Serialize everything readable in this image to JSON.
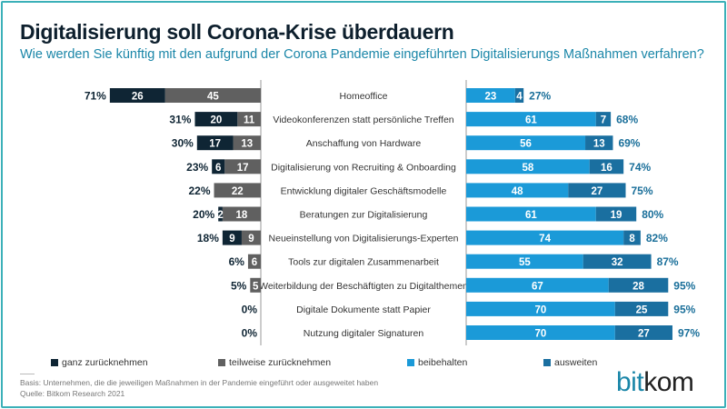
{
  "title": "Digitalisierung soll Corona-Krise überdauern",
  "subtitle": "Wie werden Sie künftig mit den aufgrund der Corona Pandemie eingeführten Digitalisierungs Maßnahmen verfahren?",
  "chart_data": {
    "type": "bar",
    "orientation": "horizontal-diverging",
    "categories": [
      "Homeoffice",
      "Videokonferenzen statt persönliche Treffen",
      "Anschaffung von Hardware",
      "Digitalisierung von Recruiting & Onboarding",
      "Entwicklung digitaler Geschäftsmodelle",
      "Beratungen zur Digitalisierung",
      "Neueinstellung von Digitalisierungs-Experten",
      "Tools zur digitalen Zusammenarbeit",
      "Weiterbildung der Beschäftigten zu Digitalthemen",
      "Digitale Dokumente statt Papier",
      "Nutzung digitaler Signaturen"
    ],
    "series": [
      {
        "name": "ganz zurücknehmen",
        "side": "left",
        "color": "#0f2534",
        "values": [
          26,
          20,
          17,
          6,
          0,
          2,
          9,
          0,
          0,
          0,
          0
        ]
      },
      {
        "name": "teilweise zurücknehmen",
        "side": "left",
        "color": "#606060",
        "values": [
          45,
          11,
          13,
          17,
          22,
          18,
          9,
          6,
          5,
          0,
          0
        ]
      },
      {
        "name": "beibehalten",
        "side": "right",
        "color": "#1b9ad8",
        "values": [
          23,
          61,
          56,
          58,
          48,
          61,
          74,
          55,
          67,
          70,
          70
        ]
      },
      {
        "name": "ausweiten",
        "side": "right",
        "color": "#1a6fa0",
        "values": [
          4,
          7,
          13,
          16,
          27,
          19,
          8,
          32,
          28,
          25,
          27
        ]
      }
    ],
    "left_totals": [
      "71%",
      "31%",
      "30%",
      "23%",
      "22%",
      "20%",
      "18%",
      "6%",
      "5%",
      "0%",
      "0%"
    ],
    "right_totals": [
      "27%",
      "68%",
      "69%",
      "74%",
      "75%",
      "80%",
      "82%",
      "87%",
      "95%",
      "95%",
      "97%"
    ],
    "unit": "%",
    "legend_position": "bottom",
    "total_color": "#1a6f9a"
  },
  "legend": [
    "ganz zurücknehmen",
    "teilweise zurücknehmen",
    "beibehalten",
    "ausweiten"
  ],
  "footer": {
    "basis": "Basis: Unternehmen, die die jeweiligen Maßnahmen in der Pandemie eingeführt oder ausgeweitet haben",
    "source": "Quelle: Bitkom Research 2021"
  },
  "logo": {
    "part1": "bit",
    "part2": "kom"
  }
}
